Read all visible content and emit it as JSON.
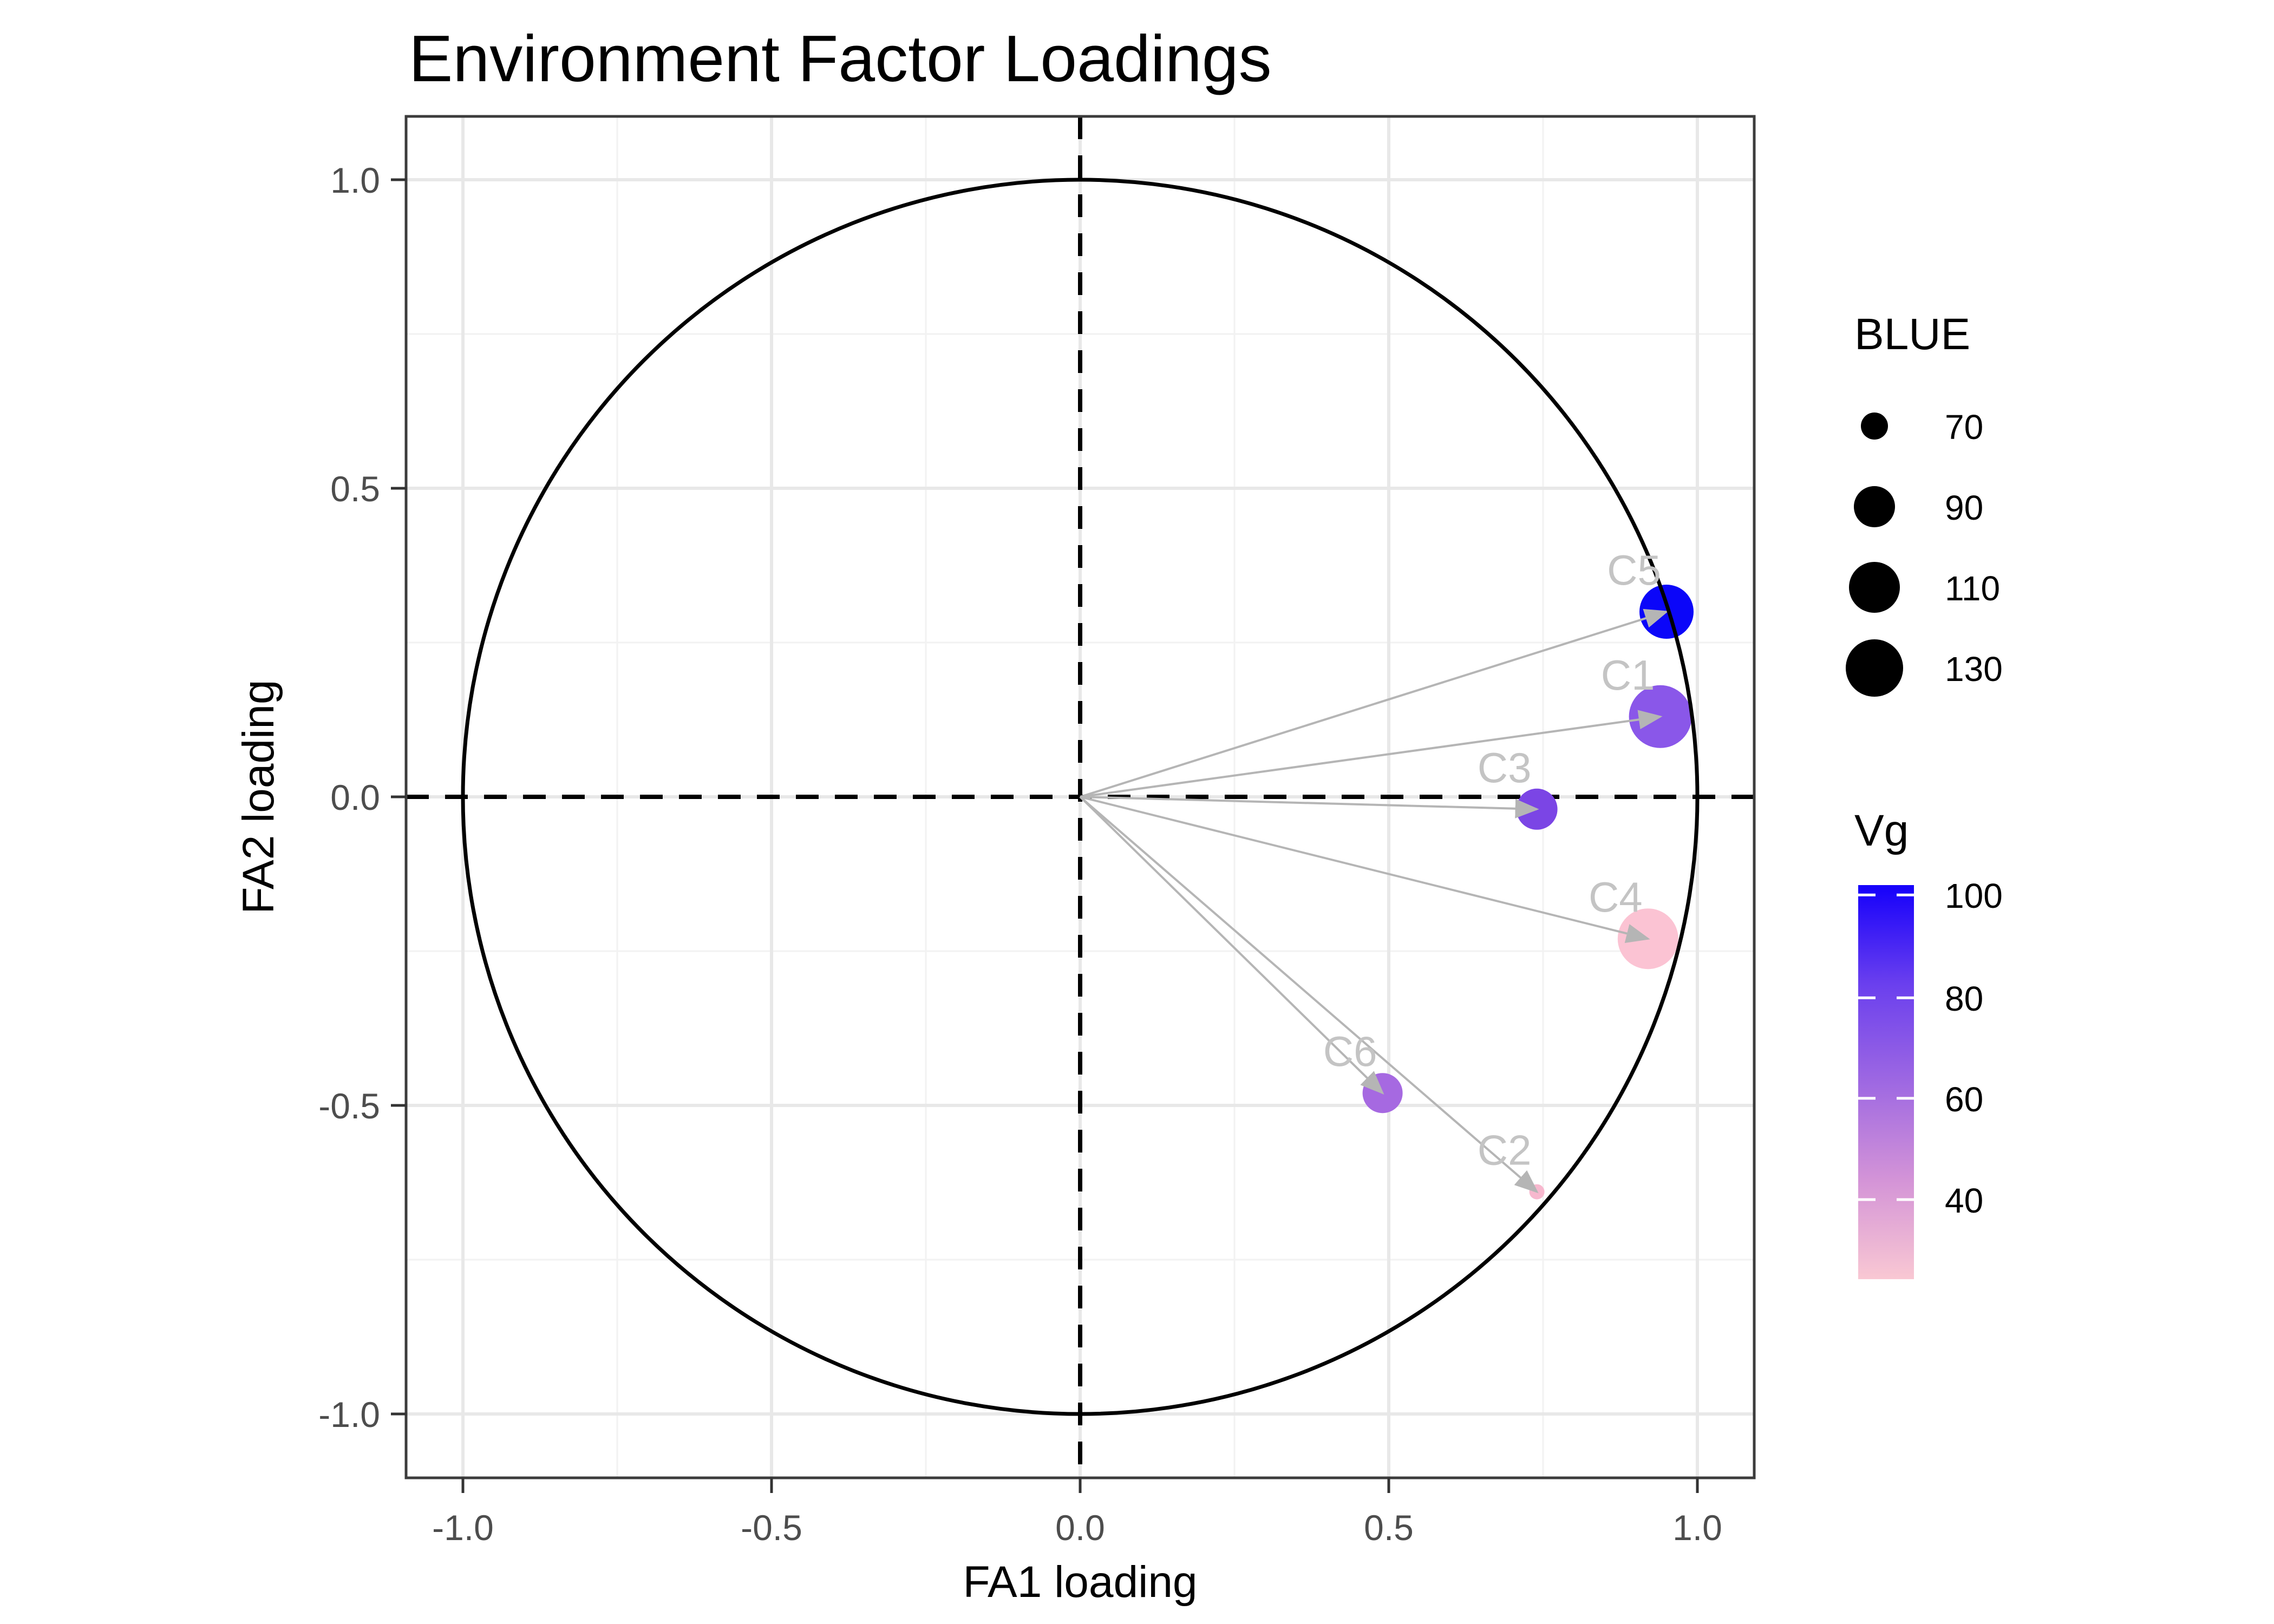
{
  "chart_data": {
    "type": "scatter",
    "title": "Environment Factor Loadings",
    "xlabel": "FA1 loading",
    "ylabel": "FA2 loading",
    "xlim": [
      -1.1,
      1.1
    ],
    "ylim": [
      -1.1,
      1.1
    ],
    "grid": "major 0.5 steps, minor 0.25 steps",
    "unit_circle": true,
    "dashed_axes_at_zero": true,
    "x_tick_labels": [
      "-1.0",
      "-0.5",
      "0.0",
      "0.5",
      "1.0"
    ],
    "y_tick_labels": [
      "1.0",
      "0.5",
      "0.0",
      "-0.5",
      "-1.0"
    ],
    "points": [
      {
        "label": "C1",
        "fa1": 0.94,
        "fa2": 0.13,
        "blue": 135,
        "vg": 78,
        "color": "#8a57e9",
        "radius_px": 58
      },
      {
        "label": "C2",
        "fa1": 0.74,
        "fa2": -0.64,
        "blue": 55,
        "vg": 32,
        "color": "#f7b8ce",
        "radius_px": 14
      },
      {
        "label": "C3",
        "fa1": 0.74,
        "fa2": -0.02,
        "blue": 90,
        "vg": 75,
        "color": "#7b45e5",
        "radius_px": 38
      },
      {
        "label": "C4",
        "fa1": 0.92,
        "fa2": -0.23,
        "blue": 125,
        "vg": 35,
        "color": "#fbc3d3",
        "radius_px": 56
      },
      {
        "label": "C5",
        "fa1": 0.95,
        "fa2": 0.3,
        "blue": 115,
        "vg": 100,
        "color": "#0b06f9",
        "radius_px": 50
      },
      {
        "label": "C6",
        "fa1": 0.49,
        "fa2": -0.48,
        "blue": 88,
        "vg": 68,
        "color": "#a669e1",
        "radius_px": 37
      }
    ],
    "arrows": "gray arrows from origin to each point",
    "size_legend": {
      "title": "BLUE",
      "entries": [
        {
          "label": "70",
          "radius_px": 25
        },
        {
          "label": "90",
          "radius_px": 38
        },
        {
          "label": "110",
          "radius_px": 47
        },
        {
          "label": "130",
          "radius_px": 53
        }
      ]
    },
    "color_legend": {
      "title": "Vg",
      "tick_labels": [
        "100",
        "80",
        "60",
        "40"
      ],
      "gradient_top_color": "#1500fb",
      "gradient_mid_color": "#9e68e2",
      "gradient_bottom_color": "#f9c8d3"
    },
    "style_colors": {
      "grid_major": "#e8e8e8",
      "grid_minor": "#f2f2f2",
      "panel_border": "#3c3c3c",
      "tick_label": "#4d4d4d",
      "arrow": "#b5b5b5",
      "point_label": "#c4c4c4",
      "dashed_axis": "#000000",
      "unit_circle": "#000000"
    }
  }
}
